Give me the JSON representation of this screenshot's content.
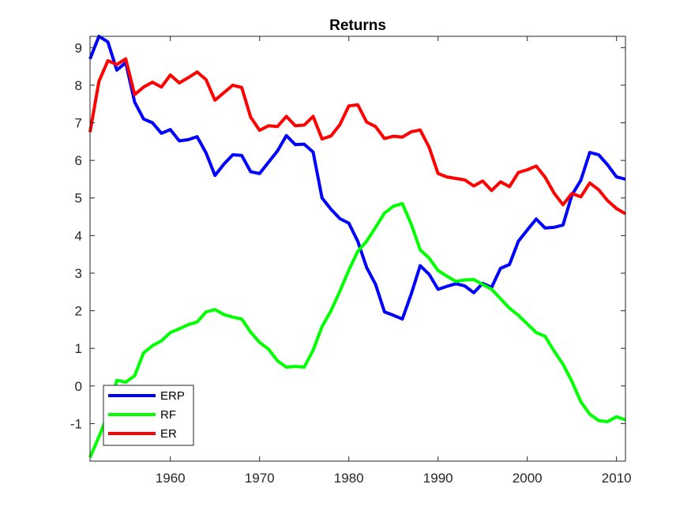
{
  "chart_data": {
    "type": "line",
    "title": "Returns",
    "xlabel": "",
    "ylabel": "",
    "xlim": [
      1951,
      2011
    ],
    "ylim": [
      -2,
      9.3
    ],
    "xticks": [
      1960,
      1970,
      1980,
      1990,
      2000,
      2010
    ],
    "xtick_labels": [
      "1960",
      "1970",
      "1980",
      "1990",
      "2000",
      "2010"
    ],
    "yticks": [
      -1,
      0,
      1,
      2,
      3,
      4,
      5,
      6,
      7,
      8,
      9
    ],
    "ytick_labels": [
      "-1",
      "0",
      "1",
      "2",
      "3",
      "4",
      "5",
      "6",
      "7",
      "8",
      "9"
    ],
    "grid": false,
    "legend": {
      "position": "bottom-left"
    },
    "x": [
      1951,
      1952,
      1953,
      1954,
      1955,
      1956,
      1957,
      1958,
      1959,
      1960,
      1961,
      1962,
      1963,
      1964,
      1965,
      1966,
      1967,
      1968,
      1969,
      1970,
      1971,
      1972,
      1973,
      1974,
      1975,
      1976,
      1977,
      1978,
      1979,
      1980,
      1981,
      1982,
      1983,
      1984,
      1985,
      1986,
      1987,
      1988,
      1989,
      1990,
      1991,
      1992,
      1993,
      1994,
      1995,
      1996,
      1997,
      1998,
      1999,
      2000,
      2001,
      2002,
      2003,
      2004,
      2005,
      2006,
      2007,
      2008,
      2009,
      2010,
      2011
    ],
    "series": [
      {
        "name": "ERP",
        "color": "#0000ff",
        "values": [
          8.7,
          9.3,
          9.15,
          8.4,
          8.6,
          7.55,
          7.1,
          7.0,
          6.72,
          6.82,
          6.52,
          6.55,
          6.63,
          6.2,
          5.6,
          5.9,
          6.15,
          6.13,
          5.7,
          5.65,
          5.95,
          6.25,
          6.66,
          6.42,
          6.43,
          6.22,
          5.0,
          4.7,
          4.45,
          4.33,
          3.85,
          3.15,
          2.7,
          1.97,
          1.88,
          1.78,
          2.45,
          3.2,
          2.97,
          2.57,
          2.65,
          2.72,
          2.66,
          2.48,
          2.73,
          2.62,
          3.13,
          3.23,
          3.85,
          4.15,
          4.44,
          4.2,
          4.22,
          4.28,
          5.08,
          5.47,
          6.21,
          6.15,
          5.88,
          5.56,
          5.5
        ]
      },
      {
        "name": "RF",
        "color": "#00ff00",
        "values": [
          -1.9,
          -1.35,
          -0.75,
          0.15,
          0.1,
          0.27,
          0.88,
          1.07,
          1.2,
          1.42,
          1.52,
          1.63,
          1.7,
          1.97,
          2.03,
          1.9,
          1.83,
          1.78,
          1.43,
          1.16,
          0.98,
          0.67,
          0.5,
          0.52,
          0.5,
          0.95,
          1.58,
          2.0,
          2.52,
          3.08,
          3.58,
          3.85,
          4.22,
          4.6,
          4.78,
          4.85,
          4.3,
          3.62,
          3.4,
          3.07,
          2.92,
          2.78,
          2.82,
          2.83,
          2.7,
          2.57,
          2.32,
          2.07,
          1.88,
          1.65,
          1.42,
          1.32,
          0.93,
          0.58,
          0.12,
          -0.42,
          -0.75,
          -0.92,
          -0.95,
          -0.82,
          -0.9
        ]
      },
      {
        "name": "ER",
        "color": "#ff0000",
        "values": [
          6.75,
          8.1,
          8.65,
          8.55,
          8.7,
          7.75,
          7.95,
          8.08,
          7.95,
          8.27,
          8.06,
          8.2,
          8.35,
          8.15,
          7.6,
          7.8,
          8.0,
          7.94,
          7.15,
          6.8,
          6.92,
          6.9,
          7.17,
          6.92,
          6.94,
          7.17,
          6.57,
          6.65,
          6.95,
          7.45,
          7.48,
          7.02,
          6.9,
          6.58,
          6.64,
          6.62,
          6.76,
          6.81,
          6.35,
          5.65,
          5.56,
          5.52,
          5.48,
          5.32,
          5.45,
          5.2,
          5.43,
          5.3,
          5.68,
          5.75,
          5.85,
          5.55,
          5.13,
          4.82,
          5.12,
          5.03,
          5.4,
          5.22,
          4.93,
          4.72,
          4.58
        ]
      }
    ]
  }
}
